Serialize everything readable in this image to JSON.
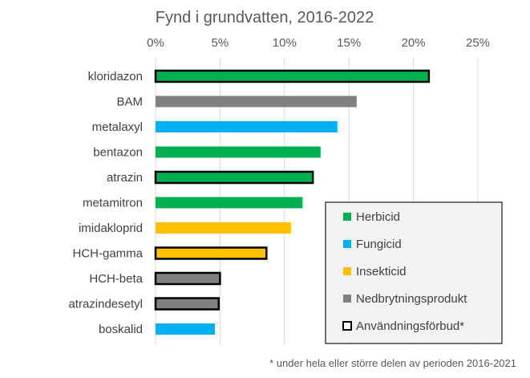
{
  "chart_data": {
    "type": "bar",
    "orientation": "horizontal",
    "title": "Fynd i grundvatten, 2016-2022",
    "xlim": [
      0,
      25
    ],
    "x_ticks": [
      "0%",
      "5%",
      "10%",
      "15%",
      "20%",
      "25%"
    ],
    "x_tick_values": [
      0,
      5,
      10,
      15,
      20,
      25
    ],
    "grid": true,
    "x_axis_position": "top",
    "categories": [
      "kloridazon",
      "BAM",
      "metalaxyl",
      "bentazon",
      "atrazin",
      "metamitron",
      "imidakloprid",
      "HCH-gamma",
      "HCH-beta",
      "atrazindesetyl",
      "boskalid"
    ],
    "values": [
      21.2,
      15.6,
      14.1,
      12.8,
      12.2,
      11.4,
      10.5,
      8.6,
      5.0,
      4.9,
      4.6
    ],
    "groups": [
      "Herbicid",
      "Nedbrytningsprodukt",
      "Fungicid",
      "Herbicid",
      "Herbicid",
      "Herbicid",
      "Insekticid",
      "Insekticid",
      "Nedbrytningsprodukt",
      "Nedbrytningsprodukt",
      "Fungicid"
    ],
    "banned": [
      true,
      false,
      false,
      false,
      true,
      false,
      false,
      true,
      true,
      true,
      false
    ],
    "legend": [
      {
        "label": "Herbicid",
        "color": "#00b050",
        "outline": false
      },
      {
        "label": "Fungicid",
        "color": "#00b0f0",
        "outline": false
      },
      {
        "label": "Insekticid",
        "color": "#ffc000",
        "outline": false
      },
      {
        "label": "Nedbrytningsprodukt",
        "color": "#808080",
        "outline": false
      },
      {
        "label": "Användningsförbud*",
        "color": "#ffffff",
        "outline": true
      }
    ],
    "legend_position": "bottom-right",
    "colors": {
      "Herbicid": "#00b050",
      "Fungicid": "#00b0f0",
      "Insekticid": "#ffc000",
      "Nedbrytningsprodukt": "#808080"
    },
    "footnote": "* under hela eller större delen av perioden 2016-2021"
  }
}
